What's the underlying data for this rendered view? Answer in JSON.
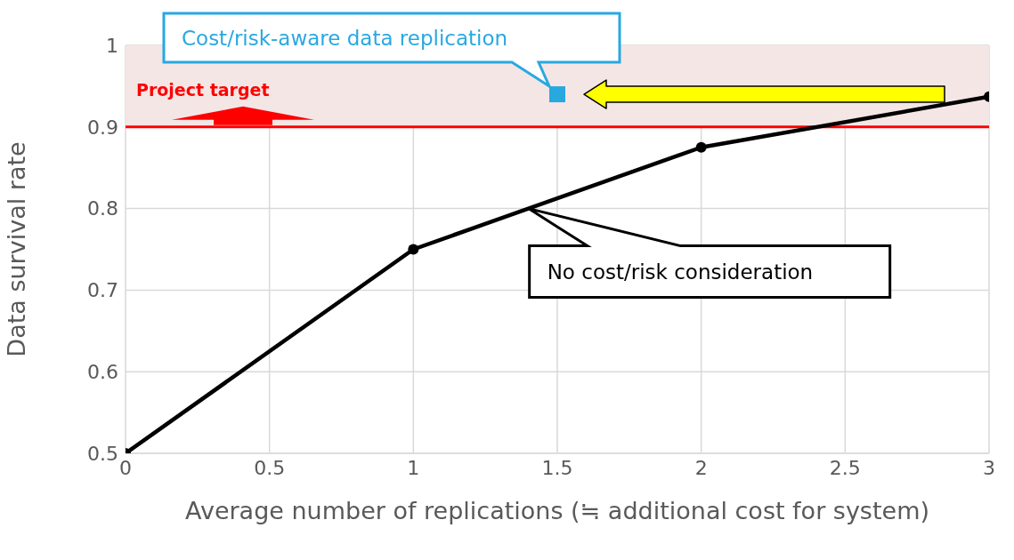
{
  "chart_data": {
    "type": "line",
    "xlabel": "Average number of replications (≒ additional cost for system)",
    "ylabel": "Data survival rate",
    "xlim": [
      0,
      3
    ],
    "xticks": [
      0,
      0.5,
      1,
      1.5,
      2,
      2.5,
      3
    ],
    "ylim": [
      0.5,
      1
    ],
    "yticks": [
      0.5,
      0.6,
      0.7,
      0.8,
      0.9,
      1
    ],
    "grid": true,
    "marker": "circle",
    "line_style": "solid",
    "series": [
      {
        "type": "line",
        "color": "#000000",
        "x": [
          0,
          1,
          2,
          3
        ],
        "values": [
          0.5,
          0.75,
          0.875,
          0.937
        ]
      },
      {
        "type": "scatter",
        "color": "#29a8e0",
        "marker": "square",
        "x": [
          1.5
        ],
        "values": [
          0.94
        ]
      }
    ],
    "ref_lines": [
      {
        "axis": "y",
        "value": 0.9,
        "label": "Project target",
        "color": "#ff0000"
      }
    ],
    "bands": [
      {
        "axis": "y",
        "from": 0.9,
        "to": 1,
        "color": "#f5e6e6"
      }
    ],
    "annotations": [
      "Cost/risk-aware data replication",
      {
        "text": "No cost/risk consideration",
        "x": 1.4,
        "y": 0.8
      }
    ]
  }
}
